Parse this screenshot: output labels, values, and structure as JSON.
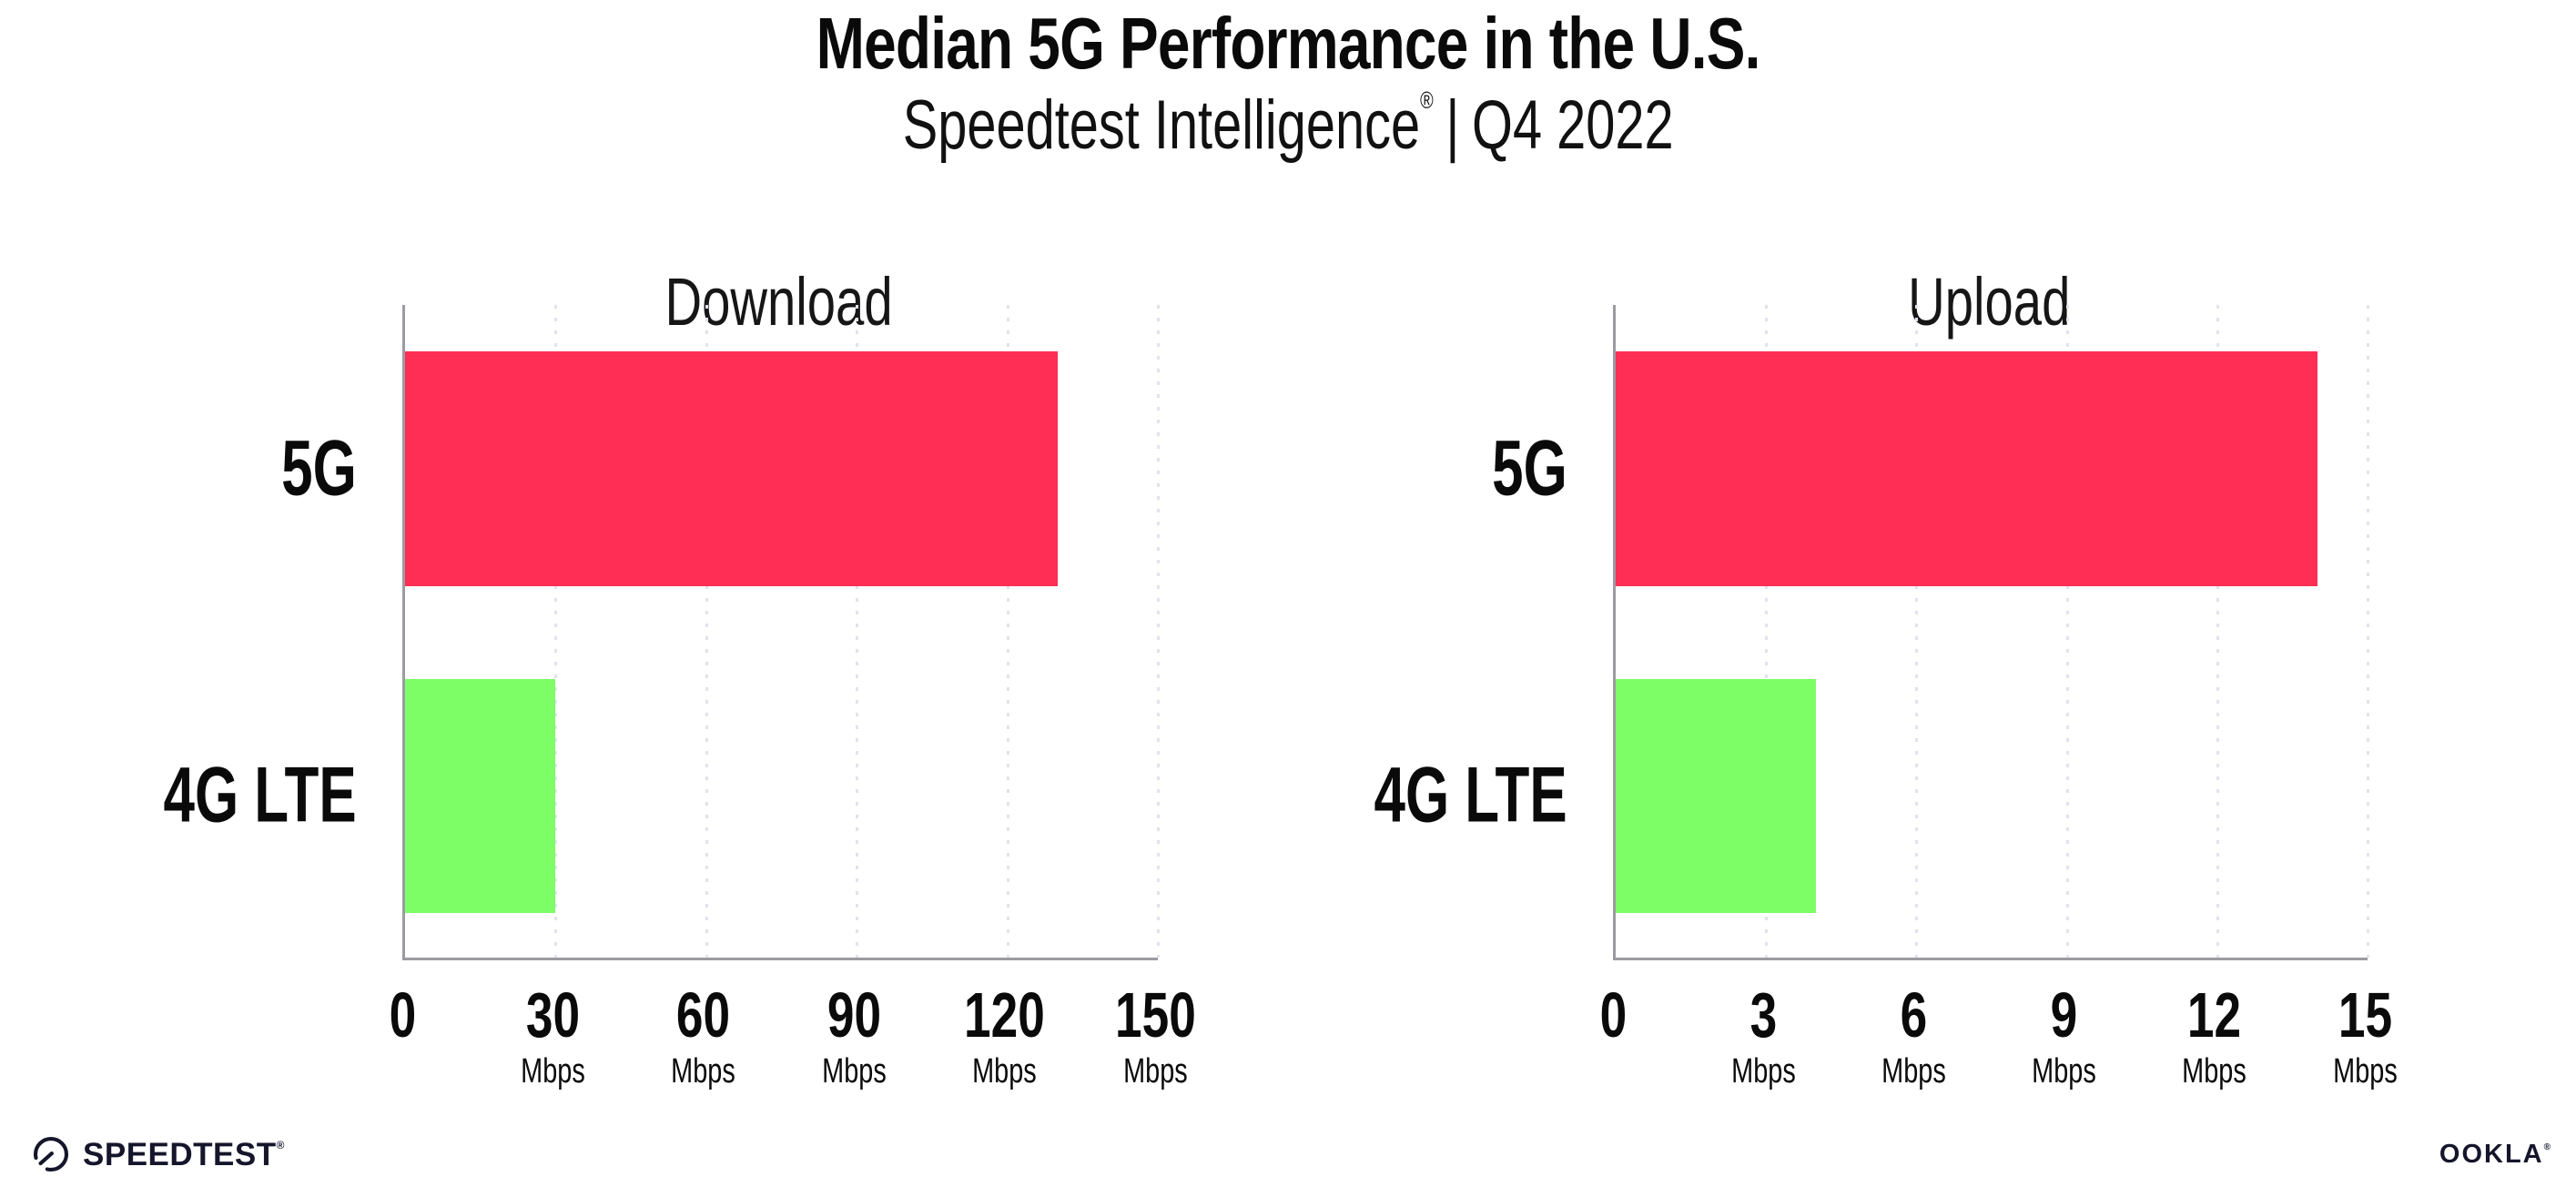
{
  "header": {
    "title": "Median 5G Performance in the U.S.",
    "subtitle_brand": "Speedtest Intelligence",
    "subtitle_reg": "®",
    "subtitle_sep": "|",
    "subtitle_period": "Q4 2022"
  },
  "chart_data": [
    {
      "type": "bar",
      "orientation": "horizontal",
      "title": "Download",
      "categories": [
        "5G",
        "4G LTE"
      ],
      "values": [
        130,
        30
      ],
      "unit": "Mbps",
      "xlim": [
        0,
        150
      ],
      "ticks": [
        {
          "label": "0",
          "unit": ""
        },
        {
          "label": "30",
          "unit": "Mbps"
        },
        {
          "label": "60",
          "unit": "Mbps"
        },
        {
          "label": "90",
          "unit": "Mbps"
        },
        {
          "label": "120",
          "unit": "Mbps"
        },
        {
          "label": "150",
          "unit": "Mbps"
        }
      ],
      "bar_colors": [
        "#FF2E55",
        "#7DFD66"
      ],
      "grid": "dotted-vertical",
      "legend": "none"
    },
    {
      "type": "bar",
      "orientation": "horizontal",
      "title": "Upload",
      "categories": [
        "5G",
        "4G LTE"
      ],
      "values": [
        14,
        4
      ],
      "unit": "Mbps",
      "xlim": [
        0,
        15
      ],
      "ticks": [
        {
          "label": "0",
          "unit": ""
        },
        {
          "label": "3",
          "unit": "Mbps"
        },
        {
          "label": "6",
          "unit": "Mbps"
        },
        {
          "label": "9",
          "unit": "Mbps"
        },
        {
          "label": "12",
          "unit": "Mbps"
        },
        {
          "label": "15",
          "unit": "Mbps"
        }
      ],
      "bar_colors": [
        "#FF2E55",
        "#7DFD66"
      ],
      "grid": "dotted-vertical",
      "legend": "none"
    }
  ],
  "footer": {
    "speedtest_label": "SPEEDTEST",
    "speedtest_reg": "®",
    "ookla_label": "OOKLA",
    "ookla_reg": "®"
  },
  "colors": {
    "bar_5g": "#FF2E55",
    "bar_4g_lte": "#7DFD66",
    "axis": "#9B9BA1",
    "gridline": "#E2E2EE",
    "text": "#0A0A0A",
    "logo": "#15162B",
    "background": "#FFFFFF"
  }
}
